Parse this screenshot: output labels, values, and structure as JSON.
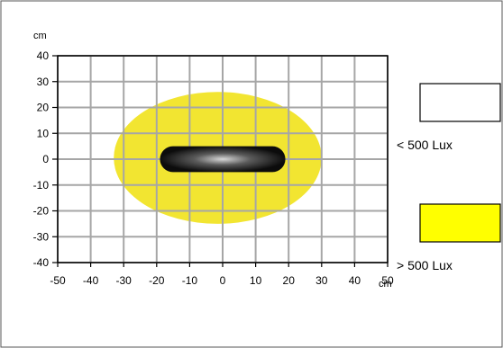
{
  "chart_data": {
    "type": "area",
    "x_unit": "cm",
    "y_unit": "cm",
    "xlim": [
      -50,
      50
    ],
    "ylim": [
      -40,
      40
    ],
    "x_ticks": [
      "-50",
      "-40",
      "-30",
      "-20",
      "-10",
      "0",
      "10",
      "20",
      "30",
      "40",
      "50"
    ],
    "y_ticks": [
      "40",
      "30",
      "20",
      "10",
      "0",
      "-10",
      "-20",
      "-30",
      "-40"
    ],
    "grid": true,
    "illuminated_area": {
      "x_range": [
        -33,
        30
      ],
      "y_range": [
        -25,
        26
      ],
      "color": "#f2e531"
    },
    "light_source": {
      "x_range": [
        -19,
        19
      ],
      "y_range": [
        -5,
        5
      ],
      "color": "#111111"
    },
    "legend": {
      "placement": "right",
      "items": [
        {
          "label": "< 500 Lux",
          "color": "#ffffff"
        },
        {
          "label": "> 500 Lux",
          "color": "#ffff00"
        }
      ]
    }
  }
}
